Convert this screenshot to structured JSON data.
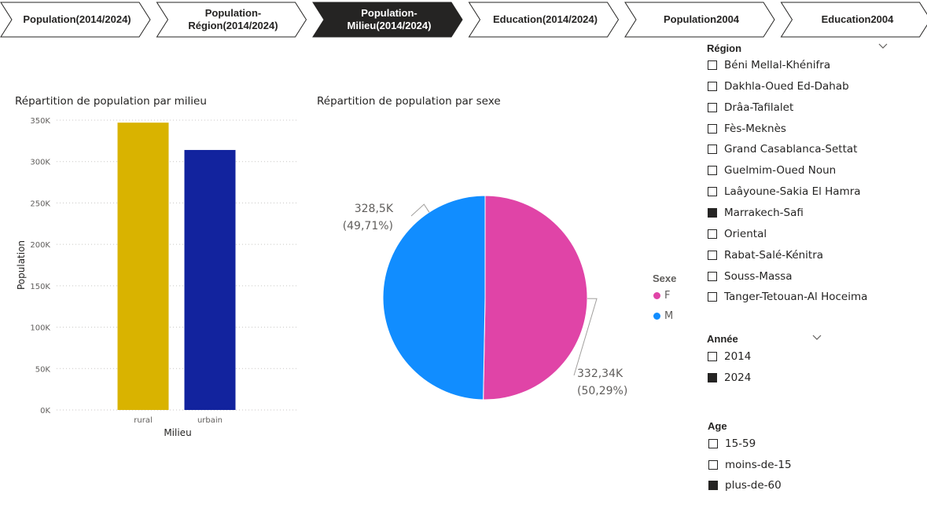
{
  "tabs": [
    {
      "label": "Population(2014/2024)",
      "active": false
    },
    {
      "label": "Population-\nRégion(2014/2024)",
      "active": false
    },
    {
      "label": "Population-\nMilieu(2014/2024)",
      "active": true
    },
    {
      "label": "Education(2014/2024)",
      "active": false
    },
    {
      "label": "Population2004",
      "active": false
    },
    {
      "label": "Education2004",
      "active": false
    }
  ],
  "bar_chart": {
    "title": "Répartition de population par milieu",
    "ylabel": "Population",
    "xlabel": "Milieu",
    "ticks": [
      "0K",
      "50K",
      "100K",
      "150K",
      "200K",
      "250K",
      "300K",
      "350K"
    ],
    "colors": [
      "#D9B300",
      "#12239E"
    ]
  },
  "pie_chart": {
    "title": "Répartition de population par sexe",
    "labels": [
      {
        "value": "332,34K",
        "pct": "(50,29%)"
      },
      {
        "value": "328,5K",
        "pct": "(49,71%)"
      }
    ],
    "colors": [
      "#E044A7",
      "#118DFF"
    ]
  },
  "legend": {
    "title": "Sexe",
    "items": [
      {
        "label": "F",
        "color": "#E044A7"
      },
      {
        "label": "M",
        "color": "#118DFF"
      }
    ]
  },
  "chart_data": [
    {
      "type": "bar",
      "title": "Répartition de population par milieu",
      "xlabel": "Milieu",
      "ylabel": "Population",
      "categories": [
        "rural",
        "urbain"
      ],
      "values": [
        347000,
        314000
      ],
      "ylim": [
        0,
        350000
      ],
      "grid": true
    },
    {
      "type": "pie",
      "title": "Répartition de population par sexe",
      "categories": [
        "F",
        "M"
      ],
      "values": [
        332340,
        328500
      ],
      "percentages": [
        50.29,
        49.71
      ],
      "legend": "right"
    }
  ],
  "slicers": {
    "region": {
      "header": "Région",
      "items": [
        {
          "label": "Béni Mellal-Khénifra",
          "checked": false
        },
        {
          "label": "Dakhla-Oued Ed-Dahab",
          "checked": false
        },
        {
          "label": "Drâa-Tafilalet",
          "checked": false
        },
        {
          "label": "Fès-Meknès",
          "checked": false
        },
        {
          "label": "Grand Casablanca-Settat",
          "checked": false
        },
        {
          "label": "Guelmim-Oued Noun",
          "checked": false
        },
        {
          "label": "Laâyoune-Sakia El Hamra",
          "checked": false
        },
        {
          "label": "Marrakech-Safi",
          "checked": true
        },
        {
          "label": "Oriental",
          "checked": false
        },
        {
          "label": "Rabat-Salé-Kénitra",
          "checked": false
        },
        {
          "label": "Souss-Massa",
          "checked": false
        },
        {
          "label": "Tanger-Tetouan-Al Hoceima",
          "checked": false
        }
      ]
    },
    "annee": {
      "header": "Année",
      "items": [
        {
          "label": "2014",
          "checked": false
        },
        {
          "label": "2024",
          "checked": true
        }
      ]
    },
    "age": {
      "header": "Age",
      "items": [
        {
          "label": "15-59",
          "checked": false
        },
        {
          "label": "moins-de-15",
          "checked": false
        },
        {
          "label": "plus-de-60",
          "checked": true
        }
      ]
    }
  }
}
